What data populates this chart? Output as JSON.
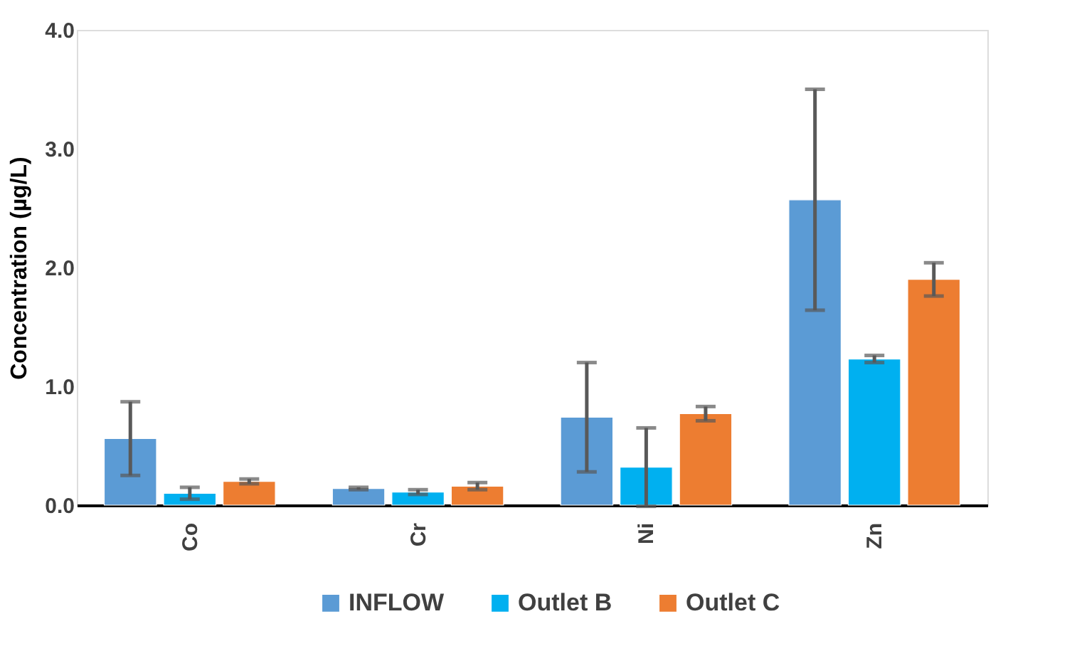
{
  "chart_data": {
    "type": "bar",
    "ylabel": "Concentration (µg/L)",
    "categories": [
      "Co",
      "Cr",
      "Ni",
      "Zn"
    ],
    "series": [
      {
        "name": "INFLOW",
        "color": "#5b9bd5",
        "values": [
          0.56,
          0.14,
          0.74,
          2.57
        ],
        "errors": [
          0.31,
          0.01,
          0.46,
          0.93
        ]
      },
      {
        "name": "Outlet B",
        "color": "#00b0f0",
        "values": [
          0.1,
          0.11,
          0.32,
          1.23
        ],
        "errors": [
          0.05,
          0.02,
          0.33,
          0.03
        ]
      },
      {
        "name": "Outlet C",
        "color": "#ed7d31",
        "values": [
          0.2,
          0.16,
          0.77,
          1.9
        ],
        "errors": [
          0.02,
          0.03,
          0.06,
          0.14
        ]
      }
    ],
    "ylim": [
      0,
      4
    ],
    "yticks": [
      {
        "value": 0,
        "label": "0.0"
      },
      {
        "value": 1,
        "label": "1.0"
      },
      {
        "value": 2,
        "label": "2.0"
      },
      {
        "value": 3,
        "label": "3.0"
      },
      {
        "value": 4,
        "label": "4.0"
      }
    ],
    "legend": "bottom"
  }
}
